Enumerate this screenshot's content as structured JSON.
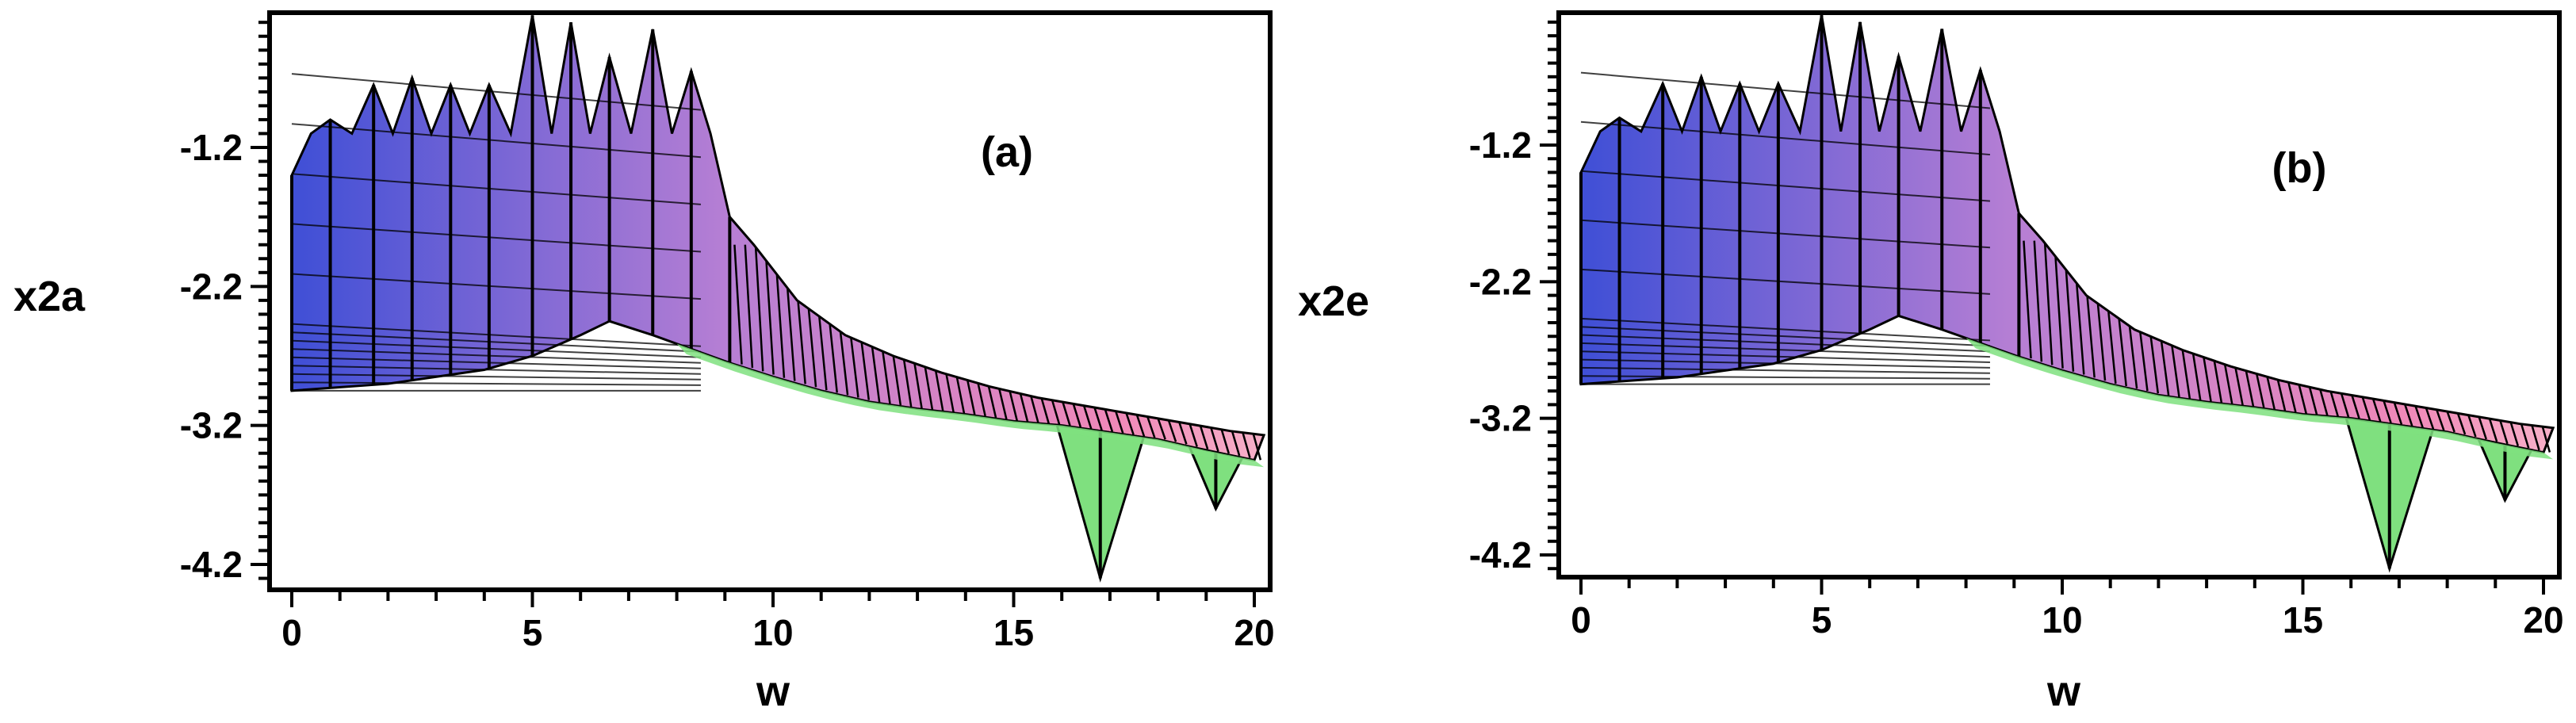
{
  "chart_data": [
    {
      "type": "area",
      "panel_label": "(a)",
      "xlabel": "w",
      "ylabel": "x2a",
      "xlim": [
        0,
        20.3
      ],
      "ylim": [
        -4.35,
        -0.2
      ],
      "x_ticks": [
        0,
        5,
        10,
        15,
        20
      ],
      "x_tick_labels": [
        "0",
        "5",
        "10",
        "15",
        "20"
      ],
      "y_ticks": [
        -1.2,
        -2.2,
        -3.2,
        -4.2
      ],
      "y_tick_labels": [
        "-1.2",
        "-2.2",
        "-3.2",
        "-4.2"
      ],
      "colors": {
        "low": "#3f4fd6",
        "mid": "#b77fd4",
        "high": "#f089b8",
        "under": "#7fe07f"
      },
      "peaks": {
        "w": [
          0.0,
          0.8,
          1.7,
          2.5,
          3.3,
          4.1,
          5.0,
          5.8,
          6.6,
          7.5,
          8.3,
          9.1
        ],
        "top": [
          -1.4,
          -1.0,
          -0.75,
          -0.7,
          -0.75,
          -0.75,
          -0.25,
          -0.3,
          -0.55,
          -0.35,
          -0.65,
          -1.7
        ]
      },
      "envelope_low": {
        "w": [
          0.0,
          2.0,
          4.0,
          5.0,
          6.0,
          6.6,
          7.5,
          8.3,
          9.1,
          10.0,
          11.0,
          12.0,
          13.0,
          14.0,
          15.0,
          16.0,
          17.0,
          18.0,
          19.0,
          20.0
        ],
        "top": [
          -2.95,
          -2.9,
          -2.8,
          -2.7,
          -2.55,
          -2.45,
          -2.55,
          -2.65,
          -2.75,
          -2.85,
          -2.95,
          -3.03,
          -3.08,
          -3.12,
          -3.17,
          -3.2,
          -3.25,
          -3.3,
          -3.38,
          -3.45
        ]
      },
      "dips": [
        {
          "w": 16.8,
          "value": -4.3
        },
        {
          "w": 19.2,
          "value": -3.8
        }
      ]
    },
    {
      "type": "area",
      "panel_label": "(b)",
      "xlabel": "w",
      "ylabel": "x2e",
      "xlim": [
        0,
        20.3
      ],
      "ylim": [
        -4.35,
        -0.2
      ],
      "x_ticks": [
        0,
        5,
        10,
        15,
        20
      ],
      "x_tick_labels": [
        "0",
        "5",
        "10",
        "15",
        "20"
      ],
      "y_ticks": [
        -1.2,
        -2.2,
        -3.2,
        -4.2
      ],
      "y_tick_labels": [
        "-1.2",
        "-2.2",
        "-3.2",
        "-4.2"
      ],
      "colors": {
        "low": "#3f4fd6",
        "mid": "#b77fd4",
        "high": "#f089b8",
        "under": "#7fe07f"
      },
      "peaks": {
        "w": [
          0.0,
          0.8,
          1.7,
          2.5,
          3.3,
          4.1,
          5.0,
          5.8,
          6.6,
          7.5,
          8.3,
          9.1
        ],
        "top": [
          -1.4,
          -1.0,
          -0.75,
          -0.7,
          -0.75,
          -0.75,
          -0.25,
          -0.3,
          -0.55,
          -0.35,
          -0.65,
          -1.7
        ]
      },
      "envelope_low": {
        "w": [
          0.0,
          2.0,
          4.0,
          5.0,
          6.0,
          6.6,
          7.5,
          8.3,
          9.1,
          10.0,
          11.0,
          12.0,
          13.0,
          14.0,
          15.0,
          16.0,
          17.0,
          18.0,
          19.0,
          20.0
        ],
        "top": [
          -2.95,
          -2.9,
          -2.8,
          -2.7,
          -2.55,
          -2.45,
          -2.55,
          -2.65,
          -2.75,
          -2.85,
          -2.95,
          -3.03,
          -3.08,
          -3.12,
          -3.17,
          -3.2,
          -3.25,
          -3.3,
          -3.38,
          -3.45
        ]
      },
      "dips": [
        {
          "w": 16.8,
          "value": -4.3
        },
        {
          "w": 19.2,
          "value": -3.8
        }
      ]
    }
  ]
}
